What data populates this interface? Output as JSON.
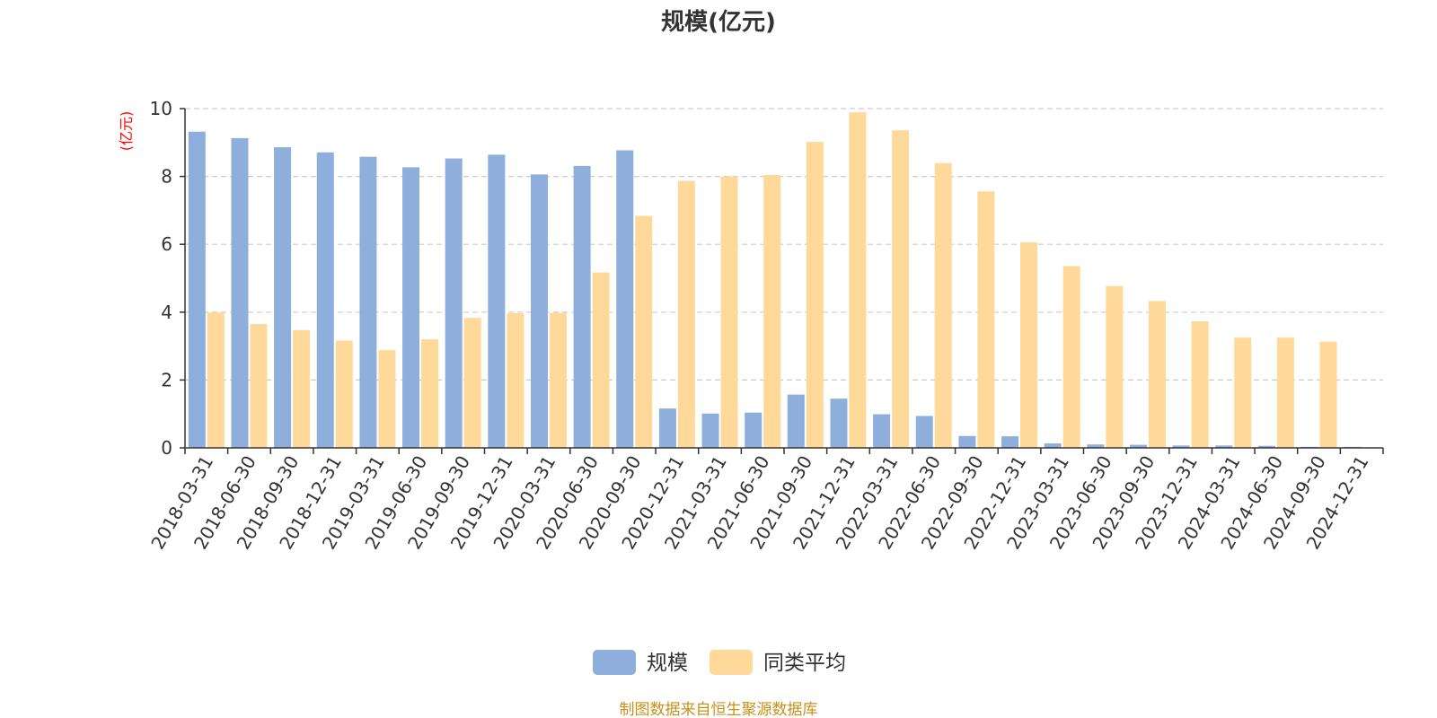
{
  "chart_data": {
    "type": "bar",
    "title": "规模(亿元)",
    "ylabel": "(亿元)",
    "ylim": [
      0,
      10
    ],
    "yticks": [
      0,
      2,
      4,
      6,
      8,
      10
    ],
    "grid": true,
    "legend_position": "bottom-center",
    "categories": [
      "2018-03-31",
      "2018-06-30",
      "2018-09-30",
      "2018-12-31",
      "2019-03-31",
      "2019-06-30",
      "2019-09-30",
      "2019-12-31",
      "2020-03-31",
      "2020-06-30",
      "2020-09-30",
      "2020-12-31",
      "2021-03-31",
      "2021-06-30",
      "2021-09-30",
      "2021-12-31",
      "2022-03-31",
      "2022-06-30",
      "2022-09-30",
      "2022-12-31",
      "2023-03-31",
      "2023-06-30",
      "2023-09-30",
      "2023-12-31",
      "2024-03-31",
      "2024-06-30",
      "2024-09-30",
      "2024-12-31"
    ],
    "series": [
      {
        "name": "规模",
        "color": "#8eaedb",
        "values": [
          9.32,
          9.13,
          8.86,
          8.71,
          8.58,
          8.27,
          8.53,
          8.64,
          8.06,
          8.31,
          8.77,
          1.16,
          1.01,
          1.04,
          1.57,
          1.45,
          0.99,
          0.94,
          0.35,
          0.34,
          0.13,
          0.1,
          0.09,
          0.07,
          0.07,
          0.06,
          0.03,
          0.03
        ]
      },
      {
        "name": "同类平均",
        "color": "#ffd99a",
        "values": [
          3.99,
          3.65,
          3.47,
          3.16,
          2.88,
          3.2,
          3.83,
          3.97,
          3.98,
          5.17,
          6.84,
          7.87,
          8.0,
          8.04,
          9.02,
          9.89,
          9.36,
          8.39,
          7.56,
          6.06,
          5.36,
          4.77,
          4.33,
          3.73,
          3.25,
          3.25,
          3.13,
          null
        ]
      }
    ]
  },
  "source_note": "制图数据来自恒生聚源数据库",
  "colors": {
    "axis": "#333333",
    "grid": "#cccccc",
    "ylabel": "#ff0000",
    "source": "#c8901c"
  }
}
